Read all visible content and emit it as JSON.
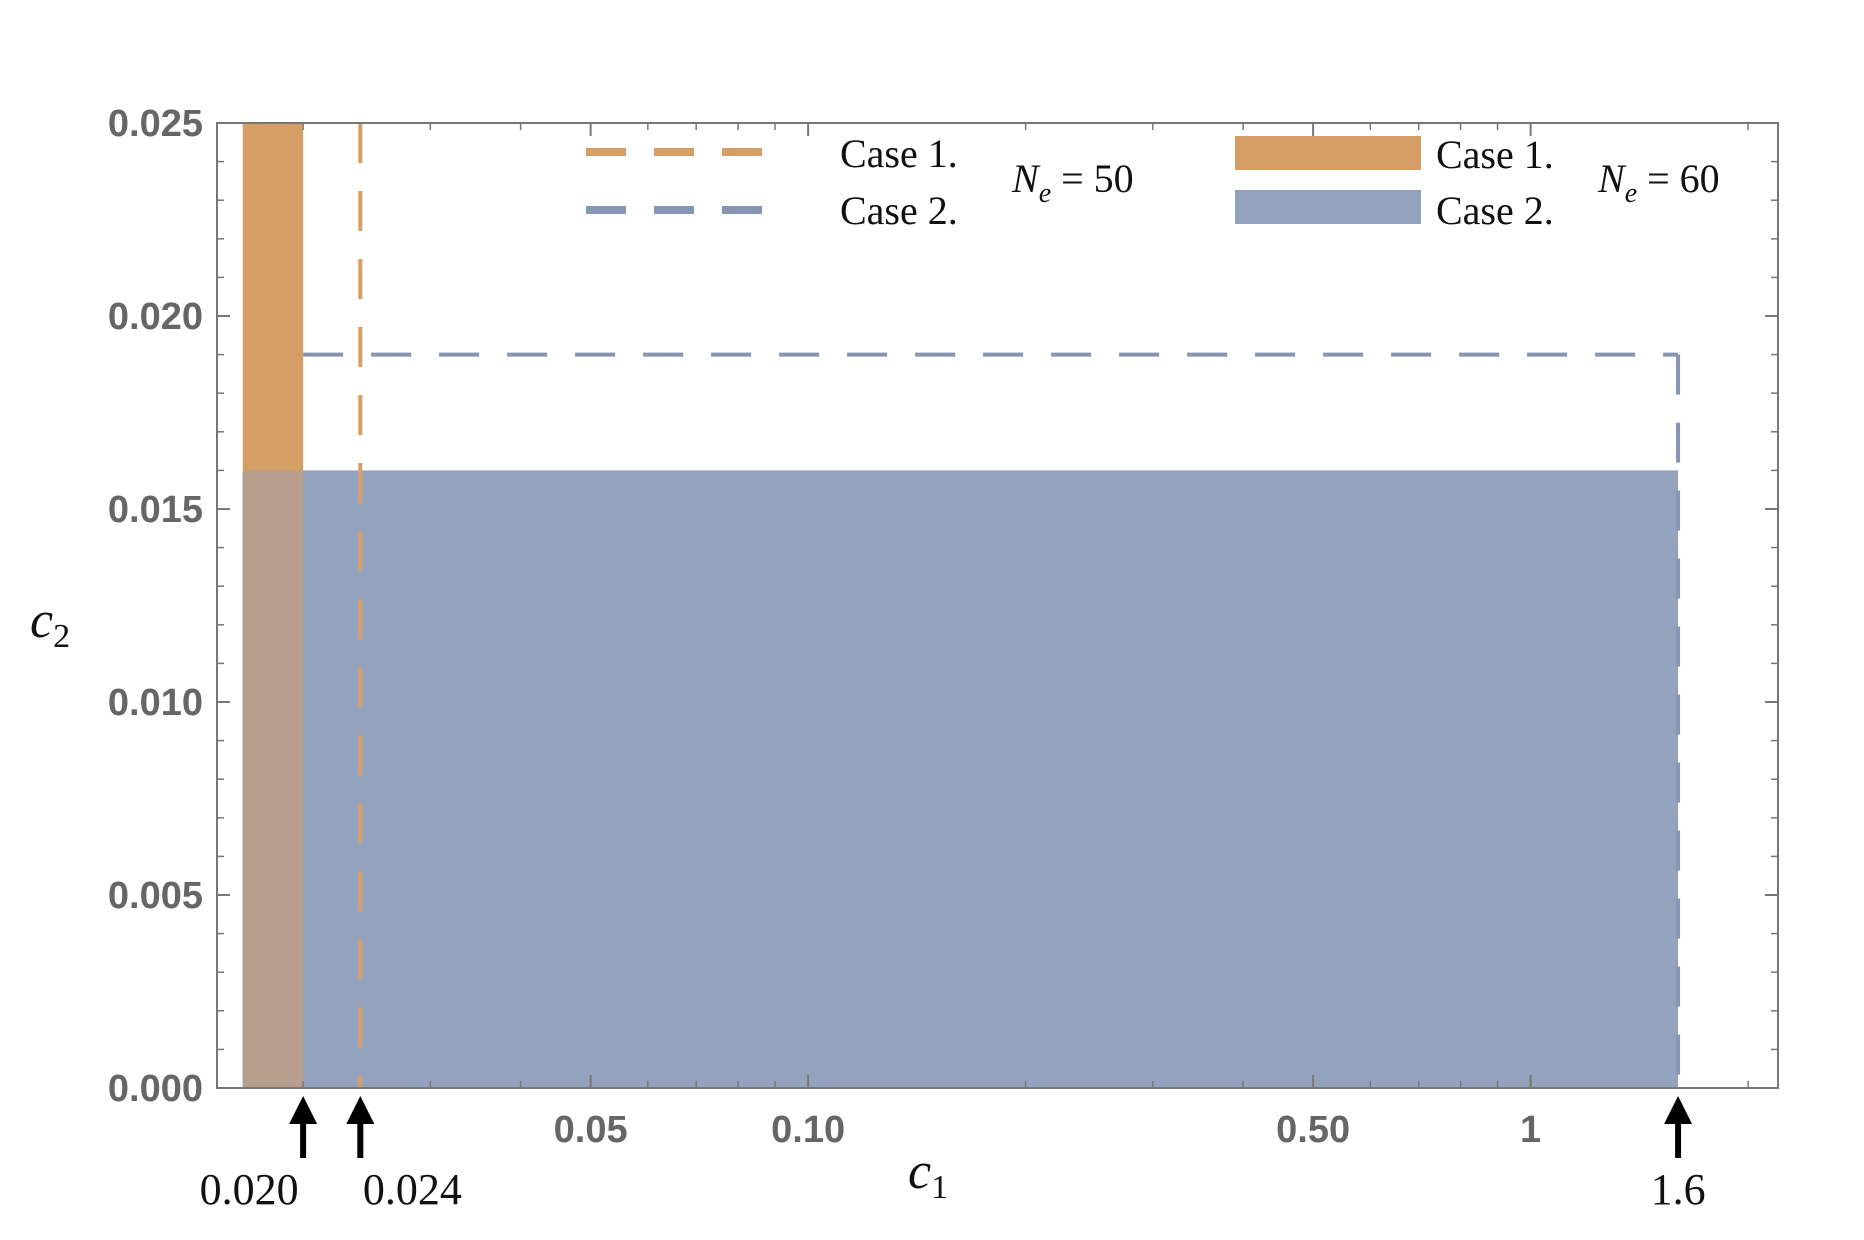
{
  "chart_data": {
    "type": "area",
    "xlabel": "c",
    "xlabel_sub": "1",
    "ylabel": "c",
    "ylabel_sub": "2",
    "x_scale": "log",
    "xlim": [
      0.0152,
      2.2
    ],
    "ylim": [
      0,
      0.025
    ],
    "y_ticks": [
      "0.000",
      "0.005",
      "0.010",
      "0.015",
      "0.020",
      "0.025"
    ],
    "y_tick_values": [
      0,
      0.005,
      0.01,
      0.015,
      0.02,
      0.025
    ],
    "x_tick_labels": [
      "0.05",
      "0.10",
      "0.50",
      "1"
    ],
    "x_tick_values": [
      0.05,
      0.1,
      0.5,
      1
    ],
    "colors": {
      "case1": "#d59e64",
      "case2": "#94a3bd",
      "overlap": "#b89e8c",
      "case2_line": "#8794b2"
    },
    "regions": [
      {
        "name": "Case 1.",
        "group": "N_e = 60",
        "style": "filled",
        "color": "#d59e64",
        "c1": [
          0.0165,
          0.02
        ],
        "c2": [
          0,
          0.025
        ]
      },
      {
        "name": "Case 2.",
        "group": "N_e = 60",
        "style": "filled",
        "color": "#94a3bd",
        "c1": [
          0.0165,
          1.6
        ],
        "c2": [
          0,
          0.016
        ]
      }
    ],
    "boundaries": [
      {
        "name": "Case 1.",
        "group": "N_e = 50",
        "style": "dashed",
        "color": "#d59e64",
        "c1_min": 0.024,
        "c2_max": 0.025
      },
      {
        "name": "Case 2.",
        "group": "N_e = 50",
        "style": "dashed",
        "color": "#8794b2",
        "c1": [
          0.02,
          1.6
        ],
        "c2_max": 0.019
      }
    ],
    "legend": {
      "placement": "top",
      "groups": [
        {
          "label_var": "N",
          "label_sub": "e",
          "label_rest": " = 50",
          "style": "dashed",
          "entries": [
            "Case 1.",
            "Case 2."
          ]
        },
        {
          "label_var": "N",
          "label_sub": "e",
          "label_rest": " = 60",
          "style": "filled",
          "entries": [
            "Case 1.",
            "Case 2."
          ]
        }
      ]
    },
    "markers": [
      {
        "label": "0.020",
        "c1": 0.02
      },
      {
        "label": "0.024",
        "c1": 0.024
      },
      {
        "label": "1.6",
        "c1": 1.6
      }
    ],
    "grid": false
  }
}
